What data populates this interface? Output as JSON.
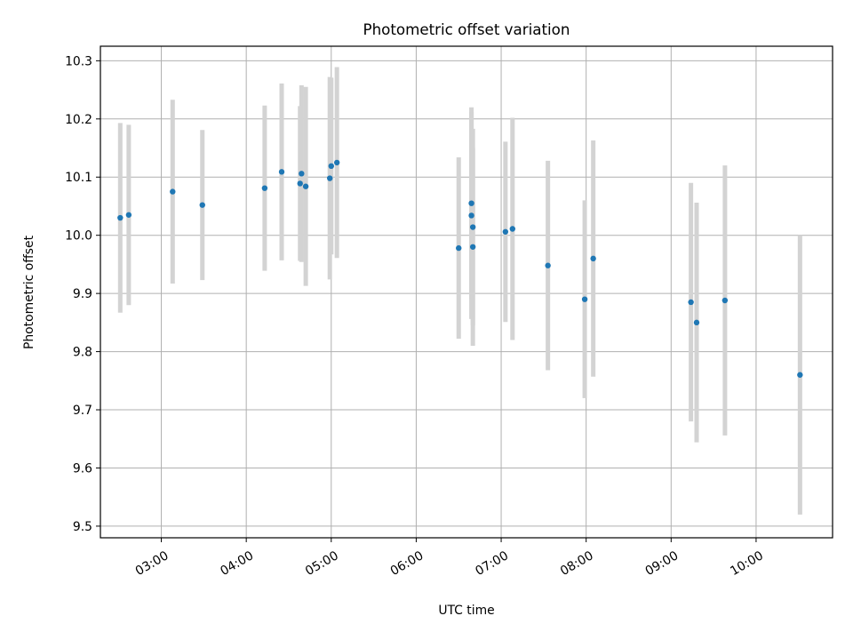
{
  "chart_data": {
    "type": "scatter",
    "title": "Photometric offset variation",
    "xlabel": "UTC time",
    "ylabel": "Photometric offset",
    "x_tick_labels": [
      "03:00",
      "04:00",
      "05:00",
      "06:00",
      "07:00",
      "08:00",
      "09:00",
      "10:00"
    ],
    "y_tick_labels": [
      "9.5",
      "9.6",
      "9.7",
      "9.8",
      "9.9",
      "10.0",
      "10.1",
      "10.2",
      "10.3"
    ],
    "xlim": [
      "02:17",
      "10:54"
    ],
    "ylim": [
      9.48,
      10.325
    ],
    "grid": true,
    "point_color": "#1f77b4",
    "errorbar_color": "#d3d3d3",
    "points": [
      {
        "x": "02:31",
        "y": 10.03,
        "yerr": 0.163
      },
      {
        "x": "02:37",
        "y": 10.035,
        "yerr": 0.155
      },
      {
        "x": "03:08",
        "y": 10.075,
        "yerr": 0.158
      },
      {
        "x": "03:29",
        "y": 10.052,
        "yerr": 0.129
      },
      {
        "x": "04:13",
        "y": 10.081,
        "yerr": 0.142
      },
      {
        "x": "04:25",
        "y": 10.109,
        "yerr": 0.152
      },
      {
        "x": "04:38",
        "y": 10.089,
        "yerr": 0.133
      },
      {
        "x": "04:39",
        "y": 10.106,
        "yerr": 0.152
      },
      {
        "x": "04:42",
        "y": 10.084,
        "yerr": 0.171
      },
      {
        "x": "04:59",
        "y": 10.098,
        "yerr": 0.174
      },
      {
        "x": "05:00",
        "y": 10.119,
        "yerr": 0.152
      },
      {
        "x": "05:04",
        "y": 10.125,
        "yerr": 0.164
      },
      {
        "x": "06:30",
        "y": 9.978,
        "yerr": 0.156
      },
      {
        "x": "06:39",
        "y": 10.034,
        "yerr": 0.178
      },
      {
        "x": "06:39",
        "y": 10.055,
        "yerr": 0.165
      },
      {
        "x": "06:40",
        "y": 9.98,
        "yerr": 0.17
      },
      {
        "x": "06:40",
        "y": 10.014,
        "yerr": 0.169
      },
      {
        "x": "07:03",
        "y": 10.006,
        "yerr": 0.155
      },
      {
        "x": "07:08",
        "y": 10.011,
        "yerr": 0.191
      },
      {
        "x": "07:33",
        "y": 9.948,
        "yerr": 0.18
      },
      {
        "x": "07:59",
        "y": 9.89,
        "yerr": 0.17
      },
      {
        "x": "08:05",
        "y": 9.96,
        "yerr": 0.203
      },
      {
        "x": "09:14",
        "y": 9.885,
        "yerr": 0.205
      },
      {
        "x": "09:18",
        "y": 9.85,
        "yerr": 0.206
      },
      {
        "x": "09:38",
        "y": 9.888,
        "yerr": 0.232
      },
      {
        "x": "10:31",
        "y": 9.76,
        "yerr": 0.24
      }
    ]
  }
}
